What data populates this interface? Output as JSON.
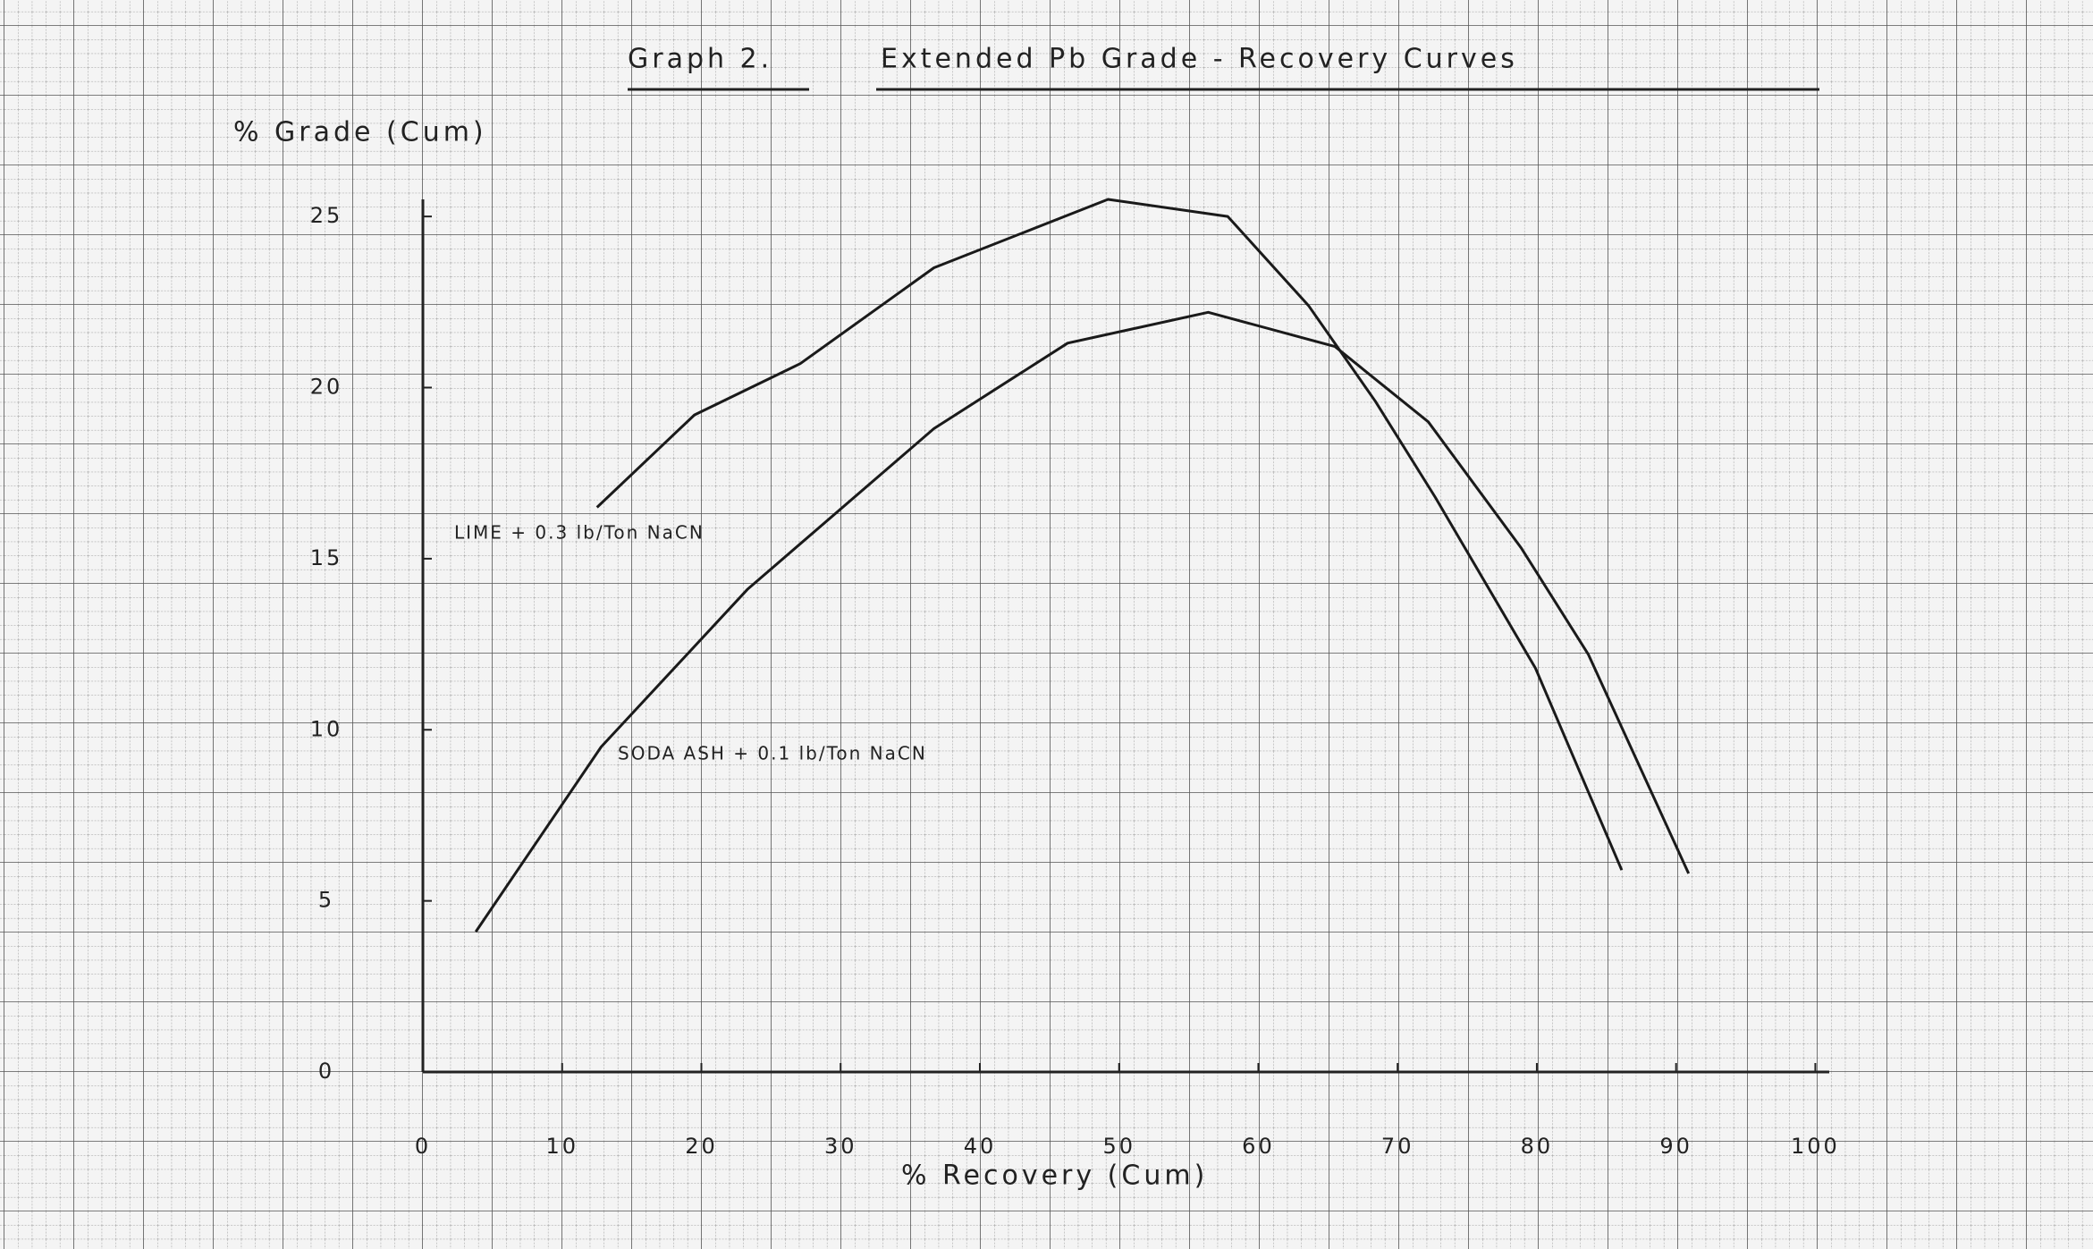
{
  "chart_data": {
    "type": "line",
    "title": "Graph 2.",
    "subtitle": "Extended Pb Grade - Recovery Curves",
    "y_label": "% Grade (Cum)",
    "x_label": "% Recovery (Cum)",
    "xlim": [
      0,
      101
    ],
    "ylim": [
      0,
      25.5
    ],
    "xticks": [
      0,
      10,
      20,
      30,
      40,
      50,
      60,
      70,
      80,
      90,
      100
    ],
    "yticks": [
      0,
      5,
      10,
      15,
      20,
      25
    ],
    "grid": true,
    "series": [
      {
        "name": "LIME + 0.3 lb/Ton NaCN",
        "color": "#1a1a1a",
        "x": [
          12.5,
          19.5,
          27.1,
          36.7,
          49.2,
          57.8,
          63.6,
          68.4,
          72.7,
          79.9,
          86.1
        ],
        "values": [
          16.5,
          19.2,
          20.7,
          23.5,
          25.5,
          25.0,
          22.4,
          19.6,
          16.8,
          11.8,
          5.9
        ]
      },
      {
        "name": "SODA ASH + 0.1 lb/Ton NaCN",
        "color": "#1a1a1a",
        "x": [
          3.8,
          12.8,
          23.3,
          36.7,
          46.3,
          56.4,
          65.5,
          72.2,
          78.9,
          83.7,
          90.9
        ],
        "values": [
          4.1,
          9.5,
          14.1,
          18.8,
          21.3,
          22.2,
          21.2,
          19.0,
          15.3,
          12.2,
          5.8
        ]
      }
    ]
  }
}
